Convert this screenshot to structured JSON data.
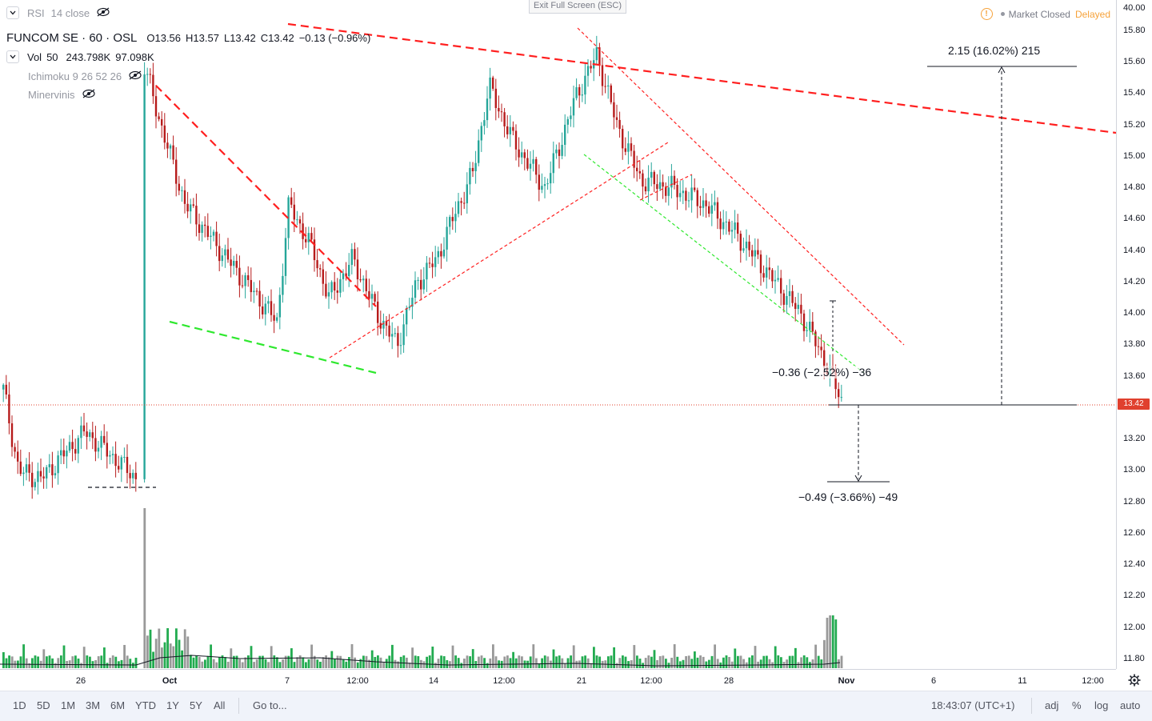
{
  "toolbar": {
    "exit_fullscreen": "Exit Full Screen (ESC)",
    "market_status": "Market Closed",
    "delay_status": "Delayed"
  },
  "legend": {
    "rsi": "RSI",
    "rsi_params": "14 close",
    "symbol": "FUNCOM SE · 60 · OSL",
    "open_label": "O",
    "open_value": "13.56",
    "high_label": "H",
    "high_value": "13.57",
    "low_label": "L",
    "low_value": "13.42",
    "close_label": "C",
    "close_value": "13.42",
    "change": "−0.13 (−0.96%)",
    "vol_name": "Vol",
    "vol_period": "50",
    "vol_value": "243.798K",
    "vol_ma": "97.098K",
    "ichimoku": "Ichimoku 9 26 52 26",
    "minervinis": "Minervinis"
  },
  "price_axis": {
    "ticks": [
      "40.00",
      "15.80",
      "15.60",
      "15.40",
      "15.20",
      "15.00",
      "14.80",
      "14.60",
      "14.40",
      "14.20",
      "14.00",
      "13.80",
      "13.60",
      "13.20",
      "13.00",
      "12.80",
      "12.60",
      "12.40",
      "12.20",
      "12.00",
      "11.80"
    ],
    "last_price": "13.42"
  },
  "time_axis": {
    "ticks": [
      "26",
      "Oct",
      "7",
      "12:00",
      "14",
      "12:00",
      "21",
      "12:00",
      "28",
      "Nov",
      "6",
      "11",
      "12:00"
    ]
  },
  "measurements": {
    "up": "2.15 (16.02%) 215",
    "small": "−0.36 (−2.52%) −36",
    "down": "−0.49 (−3.66%) −49"
  },
  "bottom_bar": {
    "ranges": [
      "1D",
      "5D",
      "1M",
      "3M",
      "6M",
      "YTD",
      "1Y",
      "5Y",
      "All"
    ],
    "goto": "Go to...",
    "clock": "18:43:07 (UTC+1)",
    "adj": "adj",
    "percent": "%",
    "log": "log",
    "auto": "auto"
  },
  "colors": {
    "up_candle": "#26a69a",
    "down_candle": "#b71c1c",
    "volume_up": "#22ab50",
    "volume_down": "#999999",
    "resistance": "#ff1f1f",
    "support": "#2ee82e",
    "last_price_line": "#e0402e"
  },
  "chart_data": {
    "type": "candlestick",
    "symbol": "FUNCOM SE",
    "interval": "60",
    "exchange": "OSL",
    "last": {
      "open": 13.56,
      "high": 13.57,
      "low": 13.42,
      "close": 13.42
    },
    "close_path": [
      {
        "x": "Sep 24",
        "y": 13.6
      },
      {
        "x": "Sep 25",
        "y": 13.0
      },
      {
        "x": "Sep 26",
        "y": 12.95
      },
      {
        "x": "Sep 26",
        "y": 13.25
      },
      {
        "x": "Sep 27",
        "y": 12.95
      },
      {
        "x": "Sep 30",
        "y": 15.6
      },
      {
        "x": "Sep 30",
        "y": 15.2
      },
      {
        "x": "Oct 1",
        "y": 14.7
      },
      {
        "x": "Oct 2",
        "y": 14.3
      },
      {
        "x": "Oct 3",
        "y": 13.95
      },
      {
        "x": "Oct 4",
        "y": 14.7
      },
      {
        "x": "Oct 4",
        "y": 14.4
      },
      {
        "x": "Oct 7",
        "y": 14.1
      },
      {
        "x": "Oct 7",
        "y": 14.35
      },
      {
        "x": "Oct 8",
        "y": 14.0
      },
      {
        "x": "Oct 9",
        "y": 13.8
      },
      {
        "x": "Oct 10",
        "y": 14.2
      },
      {
        "x": "Oct 11",
        "y": 14.35
      },
      {
        "x": "Oct 14",
        "y": 14.55
      },
      {
        "x": "Oct 15",
        "y": 14.9
      },
      {
        "x": "Oct 16",
        "y": 15.45
      },
      {
        "x": "Oct 17",
        "y": 15.1
      },
      {
        "x": "Oct 18",
        "y": 14.8
      },
      {
        "x": "Oct 21",
        "y": 15.4
      },
      {
        "x": "Oct 22",
        "y": 15.65
      },
      {
        "x": "Oct 23",
        "y": 15.2
      },
      {
        "x": "Oct 24",
        "y": 14.85
      },
      {
        "x": "Oct 25",
        "y": 14.8
      },
      {
        "x": "Oct 28",
        "y": 14.7
      },
      {
        "x": "Oct 29",
        "y": 14.5
      },
      {
        "x": "Oct 30",
        "y": 14.25
      },
      {
        "x": "Oct 31",
        "y": 14.0
      },
      {
        "x": "Oct 31",
        "y": 13.7
      },
      {
        "x": "Nov 1",
        "y": 13.42
      }
    ],
    "volume_peaks": [
      {
        "x": "Sep 30",
        "value": "largest spike"
      },
      {
        "x": "Nov 1",
        "value": "243.798K"
      }
    ],
    "volume_ma": 97098,
    "price_range": [
      11.75,
      15.85
    ],
    "grid": true
  }
}
